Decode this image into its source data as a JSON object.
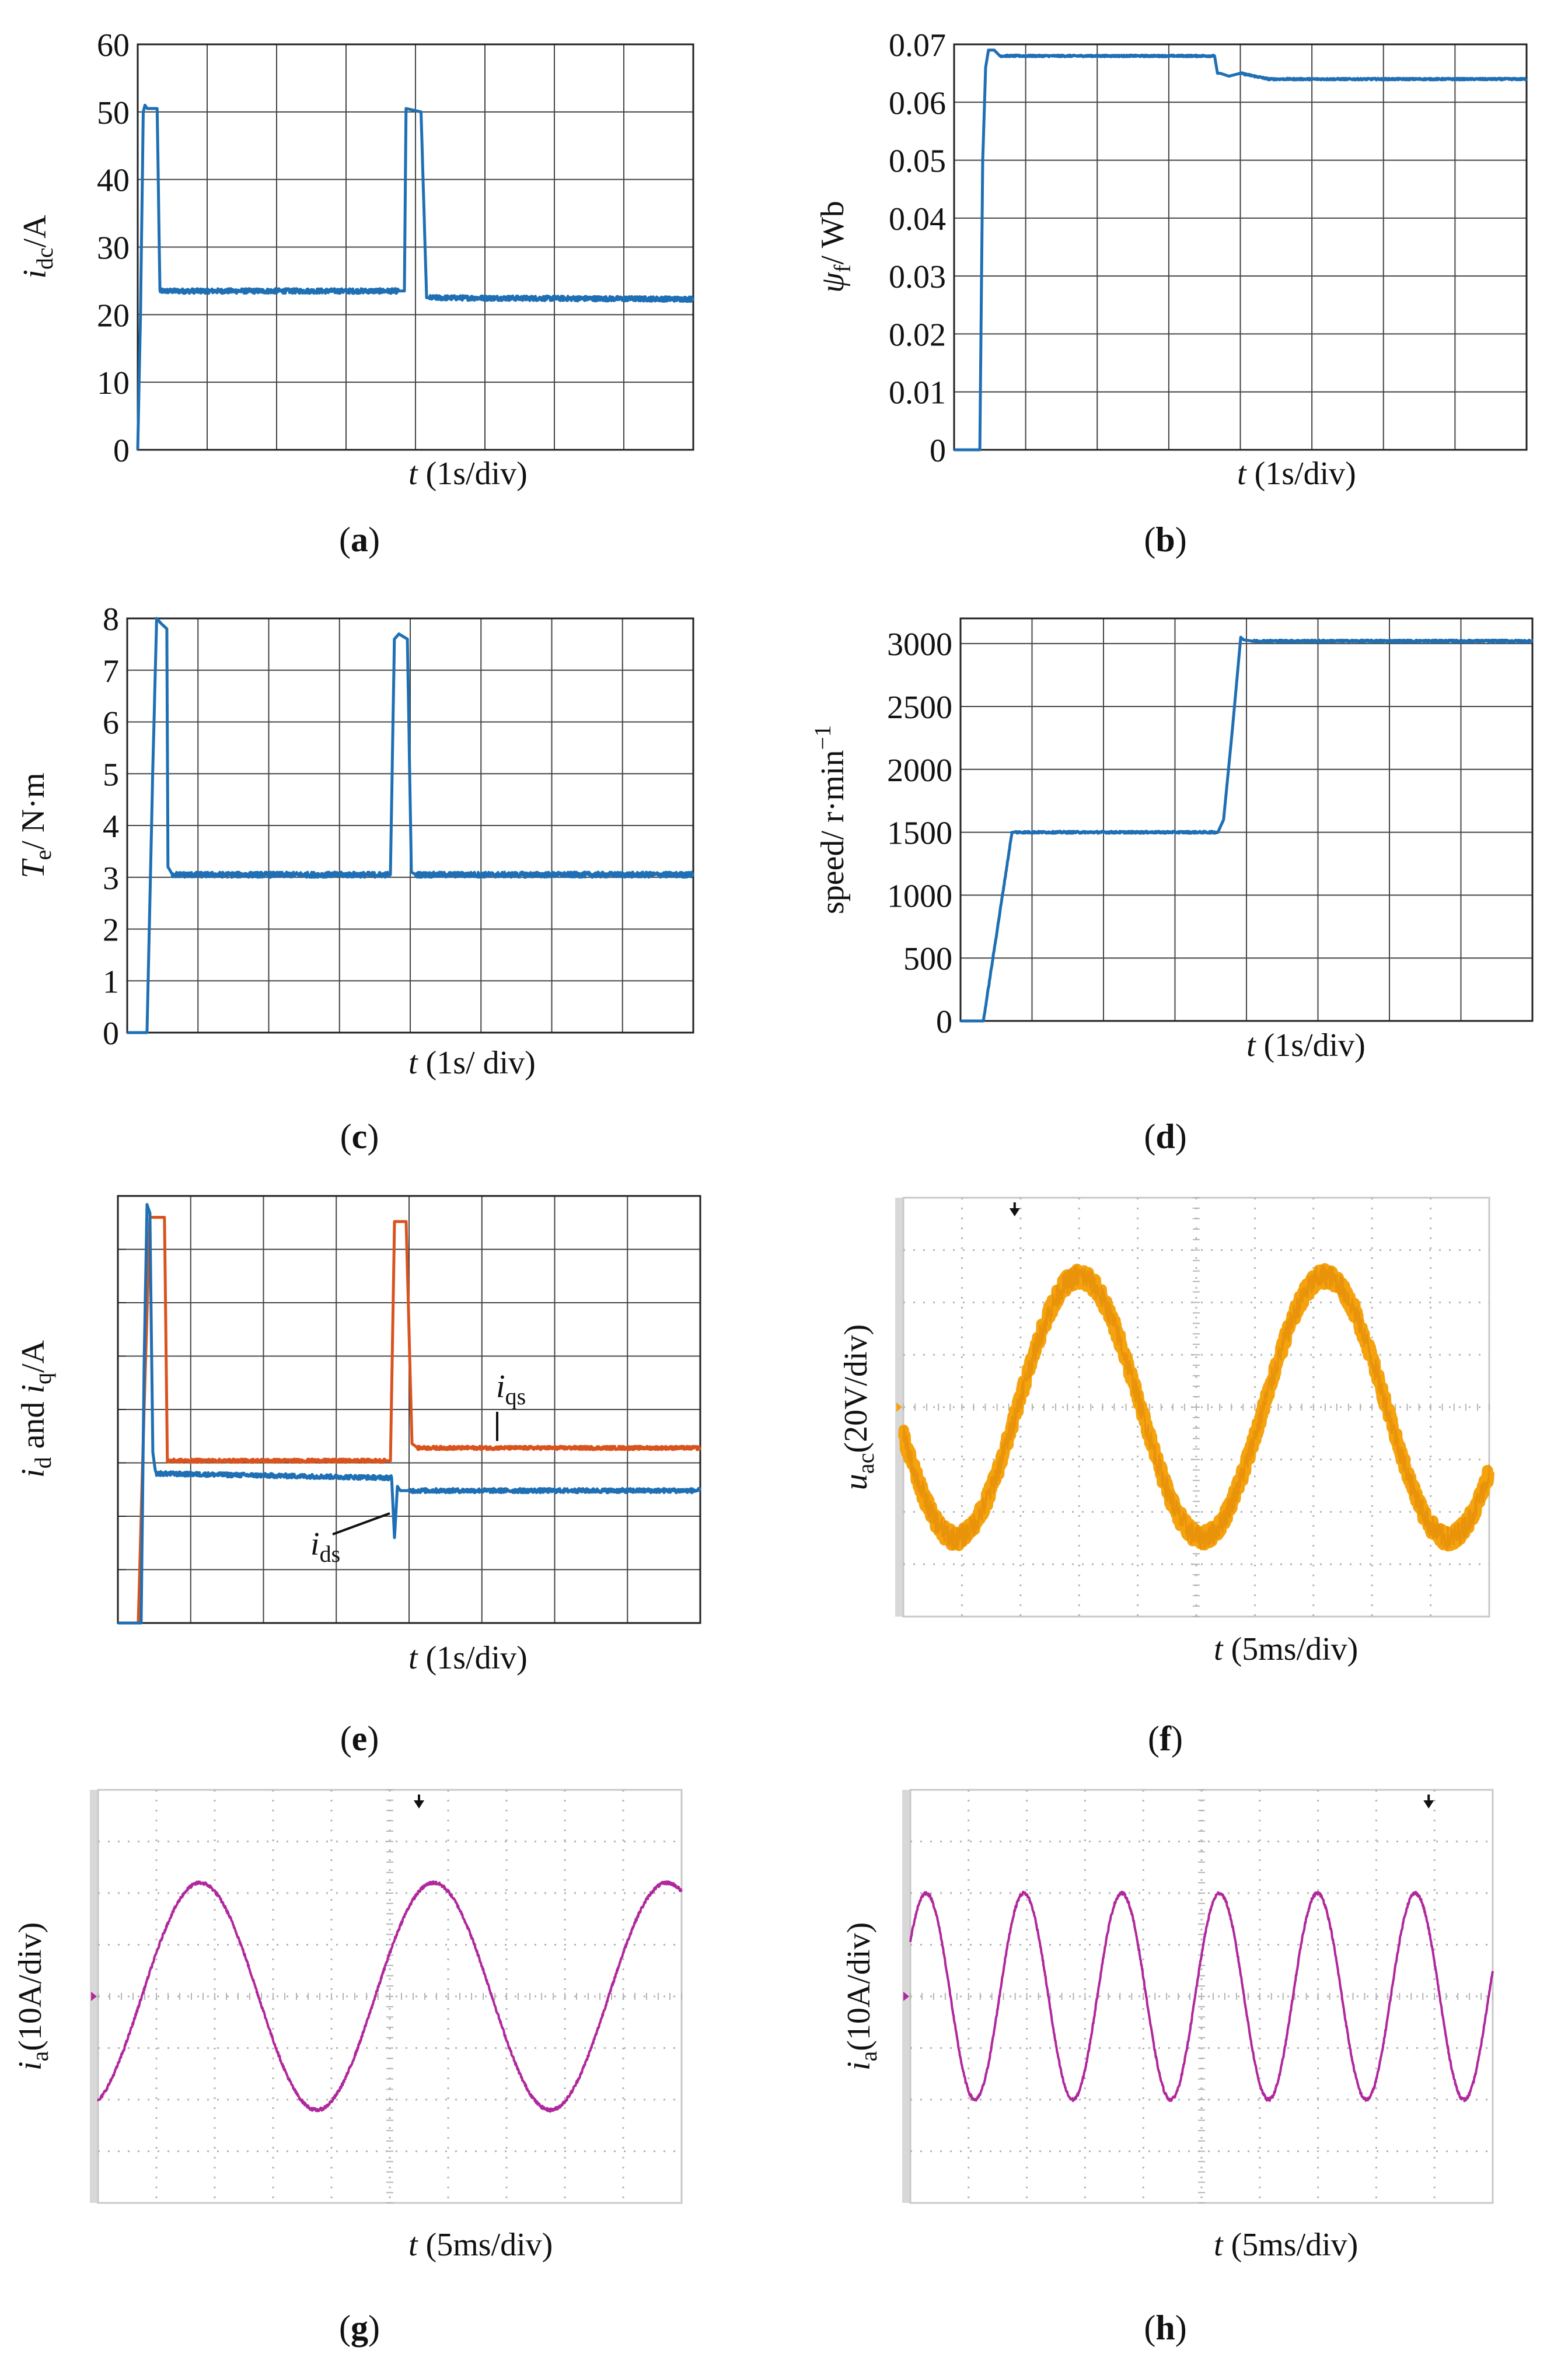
{
  "figure": {
    "colors": {
      "blue": "#1f6fb4",
      "orange": "#d9531e",
      "amber": "#f5a20f",
      "magenta": "#b0289c",
      "grid": "#444444",
      "scope_grid": "#b5b5b5"
    },
    "panels": [
      {
        "id": "a",
        "caption": "(a)",
        "xlabel": {
          "var": "t",
          "rest": " (1s/div)"
        },
        "ylabel": {
          "base": "i",
          "sub": "dc",
          "rest": "/A",
          "italic": true
        },
        "chart_data": {
          "type": "line",
          "title": "",
          "xlim": [
            0,
            10
          ],
          "ylim": [
            0,
            60
          ],
          "grid": true,
          "x_label": "t (1s/div)",
          "y_label": "i_dc/A",
          "yticks": [
            "0",
            "10",
            "20",
            "30",
            "40",
            "50",
            "60"
          ],
          "series": [
            {
              "name": "i_dc",
              "color": "#1f6fb4",
              "x": [
                0,
                0.05,
                0.1,
                0.13,
                0.17,
                0.35,
                0.4,
                4.7,
                4.8,
                4.83,
                5.1,
                5.2,
                5.25,
                10
              ],
              "y": [
                0,
                20,
                50,
                51,
                50.5,
                50.5,
                23.5,
                23.5,
                23.5,
                50.5,
                50,
                22.5,
                22.5,
                22.3
              ],
              "noise": 0.35
            }
          ]
        }
      },
      {
        "id": "b",
        "caption": "(b)",
        "xlabel": {
          "var": "t",
          "rest": " (1s/div)"
        },
        "ylabel": {
          "base": "ψ",
          "sub": "f",
          "rest": "/ Wb",
          "italic": true
        },
        "chart_data": {
          "type": "line",
          "title": "",
          "xlim": [
            0,
            10
          ],
          "ylim": [
            0,
            0.07
          ],
          "grid": true,
          "x_label": "t (1s/div)",
          "y_label": "ψf/ Wb",
          "yticks": [
            "0",
            "0.01",
            "0.02",
            "0.03",
            "0.04",
            "0.05",
            "0.06",
            "0.07"
          ],
          "series": [
            {
              "name": "psi_f",
              "color": "#1f6fb4",
              "x": [
                0,
                0.45,
                0.5,
                0.55,
                0.6,
                0.7,
                0.8,
                4.55,
                4.6,
                4.65,
                4.8,
                5.0,
                5.5,
                10
              ],
              "y": [
                0,
                0,
                0.05,
                0.066,
                0.069,
                0.069,
                0.068,
                0.068,
                0.065,
                0.065,
                0.0645,
                0.065,
                0.064,
                0.064
              ],
              "noise": 0.00015
            }
          ]
        }
      },
      {
        "id": "c",
        "caption": "(c)",
        "xlabel": {
          "var": "t",
          "rest": " (1s/ div)"
        },
        "ylabel": {
          "base": "T",
          "sub": "e",
          "rest": "/  N·m",
          "italic": true
        },
        "chart_data": {
          "type": "line",
          "title": "",
          "xlim": [
            0,
            10
          ],
          "ylim": [
            0,
            8
          ],
          "grid": true,
          "x_label": "t (1s/ div)",
          "y_label": "Te/ N·m",
          "yticks": [
            "0",
            "1",
            "2",
            "3",
            "4",
            "5",
            "6",
            "7",
            "8"
          ],
          "series": [
            {
              "name": "T_e",
              "color": "#1f6fb4",
              "x": [
                0,
                0.35,
                0.45,
                0.52,
                0.6,
                0.7,
                0.72,
                0.8,
                4.65,
                4.72,
                4.8,
                4.95,
                5.02,
                5.1,
                10
              ],
              "y": [
                0,
                0,
                5,
                8,
                7.9,
                7.8,
                3.2,
                3.05,
                3.05,
                7.6,
                7.7,
                7.6,
                3.1,
                3.05,
                3.05
              ],
              "noise": 0.05
            }
          ]
        }
      },
      {
        "id": "d",
        "caption": "(d)",
        "xlabel": {
          "var": "t",
          "rest": " (1s/div)"
        },
        "ylabel": {
          "base": "speed/ r·min",
          "sup": "−1",
          "rest": "",
          "italic": false
        },
        "chart_data": {
          "type": "line",
          "title": "",
          "xlim": [
            0,
            10
          ],
          "ylim": [
            0,
            3200
          ],
          "grid": true,
          "x_label": "t (1s/div)",
          "y_label": "speed/ r·min^-1",
          "yticks": [
            "0",
            "500",
            "1000",
            "1500",
            "2000",
            "2500",
            "3000"
          ],
          "ytick_values": [
            0,
            500,
            1000,
            1500,
            2000,
            2500,
            3000
          ],
          "series": [
            {
              "name": "speed",
              "color": "#1f6fb4",
              "x": [
                0,
                0.4,
                0.9,
                0.95,
                4.5,
                4.6,
                4.75,
                4.9,
                4.95,
                5.1,
                10
              ],
              "y": [
                0,
                0,
                1500,
                1500,
                1500,
                1600,
                2300,
                3050,
                3030,
                3020,
                3020
              ],
              "noise": 8
            }
          ]
        }
      },
      {
        "id": "e",
        "caption": "(e)",
        "xlabel": {
          "var": "t",
          "rest": " (1s/div)"
        },
        "ylabel": {
          "base": "i",
          "sub": "d",
          "mid": " and ",
          "base2": "i",
          "sub2": "q",
          "rest": "/A",
          "italic": true
        },
        "annotations": [
          {
            "base": "i",
            "sub": "qs"
          },
          {
            "base": "i",
            "sub": "ds"
          }
        ],
        "chart_data": {
          "type": "line",
          "title": "",
          "xlim": [
            0,
            10
          ],
          "ylim": [
            0,
            100
          ],
          "grid": true,
          "x_label": "t (1s/div)",
          "y_label": "i_d and i_q/A",
          "yticks": [],
          "series": [
            {
              "name": "i_qs",
              "color": "#d9531e",
              "x": [
                0,
                0.35,
                0.45,
                0.55,
                0.62,
                0.8,
                0.85,
                4.6,
                4.68,
                4.75,
                4.95,
                5.05,
                5.15,
                10
              ],
              "y": [
                0,
                0,
                50,
                95,
                95,
                95,
                38,
                38,
                38,
                94,
                94,
                42,
                41,
                41
              ],
              "noise": 0.4
            },
            {
              "name": "i_ds",
              "color": "#1f6fb4",
              "x": [
                0,
                0.4,
                0.45,
                0.5,
                0.55,
                0.6,
                0.65,
                4.7,
                4.75,
                4.8,
                4.85,
                5.0,
                10
              ],
              "y": [
                0,
                0,
                60,
                98,
                96,
                40,
                35,
                34,
                20,
                32,
                31,
                31,
                31
              ],
              "noise": 0.5
            }
          ]
        }
      },
      {
        "id": "f",
        "caption": "(f)",
        "xlabel": {
          "var": "t",
          "rest": " (5ms/div)"
        },
        "ylabel": {
          "base": "u",
          "sub": "ac",
          "rest": "(20V/div)",
          "italic": true
        },
        "chart_data": {
          "type": "line",
          "title": "",
          "xlim": [
            0,
            10
          ],
          "ylim": [
            -4,
            4
          ],
          "grid": true,
          "x_label": "t (5ms/div)",
          "y_label": "u_ac (20V/div)",
          "series": [
            {
              "name": "u_ac",
              "color": "#f5a20f",
              "amplitude": 2.5,
              "period": 4.2,
              "phase_peak_x": 3.0,
              "band": 0.16
            }
          ]
        }
      },
      {
        "id": "g",
        "caption": "(g)",
        "xlabel": {
          "var": "t",
          "rest": " (5ms/div)"
        },
        "ylabel": {
          "base": "i",
          "sub": "a",
          "rest": "(10A/div)",
          "italic": true
        },
        "chart_data": {
          "type": "line",
          "title": "",
          "xlim": [
            0,
            10
          ],
          "ylim": [
            -4,
            4
          ],
          "grid": true,
          "x_label": "t (5ms/div)",
          "y_label": "i_a (10A/div)",
          "series": [
            {
              "name": "i_a",
              "color": "#b0289c",
              "amplitude": 2.2,
              "period": 4.0,
              "phase_peak_x": 1.75,
              "band": 0.03
            }
          ]
        }
      },
      {
        "id": "h",
        "caption": "(h)",
        "xlabel": {
          "var": "t",
          "rest": " (5ms/div)"
        },
        "ylabel": {
          "base": "i",
          "sub": "a",
          "rest": "(10A/div)",
          "italic": true
        },
        "chart_data": {
          "type": "line",
          "title": "",
          "xlim": [
            0,
            10
          ],
          "ylim": [
            -4,
            4
          ],
          "grid": true,
          "x_label": "t (5ms/div)",
          "y_label": "i_a (10A/div)",
          "series": [
            {
              "name": "i_a",
              "color": "#b0289c",
              "amplitude": 2.0,
              "period": 1.68,
              "phase_peak_x": 0.27,
              "band": 0.03
            }
          ]
        }
      }
    ]
  }
}
